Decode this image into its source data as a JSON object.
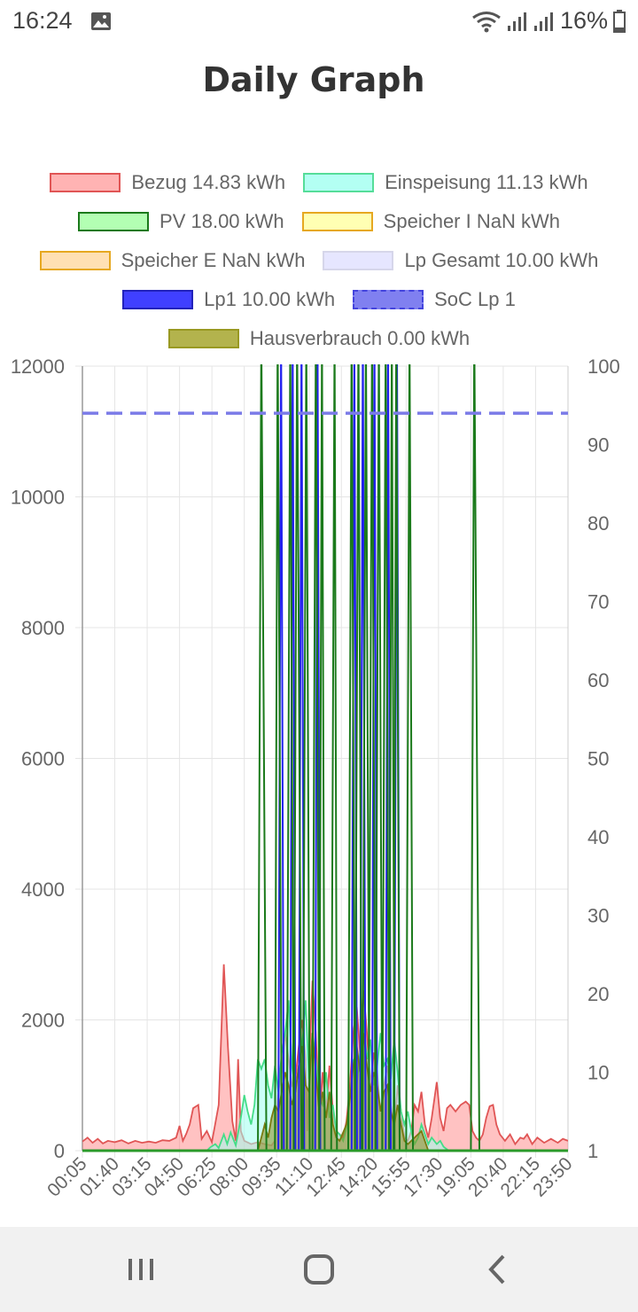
{
  "status_bar": {
    "time": "16:24",
    "battery": "16%"
  },
  "title": "Daily Graph",
  "legend": [
    [
      {
        "label": "Bezug 14.83 kWh",
        "fill": "#ffb3b3",
        "stroke": "#e05555",
        "dashed": false
      },
      {
        "label": "Einspeisung 11.13 kWh",
        "fill": "#b3fff3",
        "stroke": "#55dd99",
        "dashed": false
      }
    ],
    [
      {
        "label": "PV 18.00 kWh",
        "fill": "#b3ffb3",
        "stroke": "#1b7a1b",
        "dashed": false
      },
      {
        "label": "Speicher I NaN kWh",
        "fill": "#ffffb3",
        "stroke": "#e6a820",
        "dashed": false
      }
    ],
    [
      {
        "label": "Speicher E NaN kWh",
        "fill": "#ffe0b3",
        "stroke": "#e6a820",
        "dashed": false
      },
      {
        "label": "Lp Gesamt 10.00 kWh",
        "fill": "#e6e6ff",
        "stroke": "#d6d6ea",
        "dashed": false
      }
    ],
    [
      {
        "label": "Lp1 10.00 kWh",
        "fill": "#4040ff",
        "stroke": "#2222bb",
        "dashed": false
      },
      {
        "label": "SoC Lp 1",
        "fill": "#8080f0",
        "stroke": "#4444dd",
        "dashed": true
      }
    ],
    [
      {
        "label": "Hausverbrauch 0.00 kWh",
        "fill": "#b3b34d",
        "stroke": "#999922",
        "dashed": false
      }
    ]
  ],
  "colors": {
    "bezug_stroke": "#e05555",
    "bezug_fill": "rgba(255,120,120,0.45)",
    "einspeisung_stroke": "#44dd88",
    "einspeisung_fill": "rgba(160,255,240,0.55)",
    "pv_stroke": "#1b7a1b",
    "lp1_stroke": "#2222ee",
    "soc_stroke": "#7b7be8",
    "haus_stroke": "#7a7a10",
    "haus_fill": "rgba(140,140,30,0.55)",
    "grid": "#e5e5e5"
  },
  "chart_data": {
    "type": "line",
    "y_left": {
      "min": 0,
      "max": 12000,
      "ticks": [
        "12000",
        "10000",
        "8000",
        "6000",
        "4000",
        "2000",
        "0"
      ]
    },
    "y_right": {
      "min": 0,
      "max": 100,
      "ticks": [
        "100",
        "90",
        "80",
        "70",
        "60",
        "50",
        "40",
        "30",
        "20",
        "10",
        "1"
      ]
    },
    "x_tick_labels": [
      "00:05",
      "01:40",
      "03:15",
      "04:50",
      "06:25",
      "08:00",
      "09:35",
      "11:10",
      "12:45",
      "14:20",
      "15:55",
      "17:30",
      "19:05",
      "20:40",
      "22:15",
      "23:50"
    ],
    "x_range_minutes": [
      5,
      1430
    ],
    "series": [
      {
        "name": "Bezug",
        "key": "bezug",
        "points": [
          [
            5,
            140
          ],
          [
            20,
            200
          ],
          [
            35,
            120
          ],
          [
            50,
            180
          ],
          [
            65,
            110
          ],
          [
            80,
            150
          ],
          [
            100,
            130
          ],
          [
            120,
            160
          ],
          [
            140,
            110
          ],
          [
            160,
            150
          ],
          [
            180,
            120
          ],
          [
            200,
            140
          ],
          [
            220,
            120
          ],
          [
            240,
            160
          ],
          [
            260,
            150
          ],
          [
            280,
            200
          ],
          [
            290,
            380
          ],
          [
            300,
            150
          ],
          [
            310,
            260
          ],
          [
            320,
            400
          ],
          [
            330,
            650
          ],
          [
            345,
            700
          ],
          [
            355,
            180
          ],
          [
            370,
            300
          ],
          [
            385,
            130
          ],
          [
            405,
            700
          ],
          [
            420,
            2850
          ],
          [
            432,
            1600
          ],
          [
            445,
            450
          ],
          [
            455,
            150
          ],
          [
            462,
            1400
          ],
          [
            470,
            300
          ],
          [
            480,
            150
          ],
          [
            500,
            100
          ],
          [
            520,
            130
          ],
          [
            540,
            100
          ],
          [
            560,
            80
          ],
          [
            570,
            150
          ],
          [
            580,
            900
          ],
          [
            590,
            1200
          ],
          [
            600,
            1800
          ],
          [
            610,
            1400
          ],
          [
            620,
            1000
          ],
          [
            630,
            1100
          ],
          [
            640,
            1600
          ],
          [
            650,
            2000
          ],
          [
            660,
            1400
          ],
          [
            665,
            300
          ],
          [
            670,
            1200
          ],
          [
            680,
            2600
          ],
          [
            690,
            1800
          ],
          [
            700,
            500
          ],
          [
            710,
            1200
          ],
          [
            720,
            600
          ],
          [
            730,
            1300
          ],
          [
            740,
            600
          ],
          [
            750,
            300
          ],
          [
            760,
            250
          ],
          [
            770,
            200
          ],
          [
            780,
            450
          ],
          [
            790,
            1000
          ],
          [
            800,
            1800
          ],
          [
            810,
            2200
          ],
          [
            820,
            1500
          ],
          [
            830,
            2450
          ],
          [
            840,
            1800
          ],
          [
            850,
            1000
          ],
          [
            860,
            1500
          ],
          [
            870,
            1200
          ],
          [
            880,
            600
          ],
          [
            890,
            1000
          ],
          [
            900,
            1300
          ],
          [
            910,
            700
          ],
          [
            920,
            300
          ],
          [
            930,
            1000
          ],
          [
            940,
            600
          ],
          [
            950,
            200
          ],
          [
            960,
            150
          ],
          [
            970,
            300
          ],
          [
            980,
            700
          ],
          [
            990,
            600
          ],
          [
            1000,
            900
          ],
          [
            1010,
            400
          ],
          [
            1020,
            200
          ],
          [
            1030,
            500
          ],
          [
            1045,
            1050
          ],
          [
            1055,
            500
          ],
          [
            1065,
            300
          ],
          [
            1075,
            650
          ],
          [
            1085,
            700
          ],
          [
            1100,
            600
          ],
          [
            1115,
            700
          ],
          [
            1130,
            750
          ],
          [
            1140,
            700
          ],
          [
            1150,
            300
          ],
          [
            1160,
            200
          ],
          [
            1170,
            150
          ],
          [
            1180,
            250
          ],
          [
            1190,
            500
          ],
          [
            1200,
            680
          ],
          [
            1210,
            700
          ],
          [
            1220,
            400
          ],
          [
            1230,
            250
          ],
          [
            1245,
            150
          ],
          [
            1260,
            250
          ],
          [
            1275,
            100
          ],
          [
            1290,
            200
          ],
          [
            1300,
            180
          ],
          [
            1310,
            250
          ],
          [
            1325,
            100
          ],
          [
            1340,
            200
          ],
          [
            1360,
            120
          ],
          [
            1380,
            180
          ],
          [
            1400,
            120
          ],
          [
            1415,
            180
          ],
          [
            1430,
            150
          ]
        ]
      },
      {
        "name": "Einspeisung",
        "key": "einspeisung",
        "points": [
          [
            5,
            0
          ],
          [
            370,
            0
          ],
          [
            380,
            50
          ],
          [
            395,
            100
          ],
          [
            405,
            40
          ],
          [
            420,
            250
          ],
          [
            430,
            100
          ],
          [
            440,
            280
          ],
          [
            455,
            80
          ],
          [
            470,
            500
          ],
          [
            480,
            850
          ],
          [
            490,
            600
          ],
          [
            500,
            400
          ],
          [
            510,
            700
          ],
          [
            520,
            1400
          ],
          [
            530,
            1250
          ],
          [
            540,
            1400
          ],
          [
            550,
            1000
          ],
          [
            560,
            800
          ],
          [
            570,
            1300
          ],
          [
            580,
            900
          ],
          [
            590,
            1500
          ],
          [
            600,
            1800
          ],
          [
            610,
            2300
          ],
          [
            620,
            1300
          ],
          [
            630,
            900
          ],
          [
            640,
            1300
          ],
          [
            650,
            1600
          ],
          [
            660,
            2300
          ],
          [
            670,
            1100
          ],
          [
            680,
            1800
          ],
          [
            690,
            1400
          ],
          [
            700,
            800
          ],
          [
            710,
            700
          ],
          [
            720,
            1200
          ],
          [
            730,
            500
          ],
          [
            740,
            700
          ],
          [
            750,
            300
          ],
          [
            760,
            250
          ],
          [
            770,
            150
          ],
          [
            780,
            350
          ],
          [
            790,
            800
          ],
          [
            800,
            1400
          ],
          [
            810,
            1000
          ],
          [
            820,
            1500
          ],
          [
            830,
            2000
          ],
          [
            840,
            1400
          ],
          [
            850,
            1700
          ],
          [
            860,
            1000
          ],
          [
            870,
            1300
          ],
          [
            880,
            1800
          ],
          [
            890,
            1300
          ],
          [
            900,
            1400
          ],
          [
            910,
            1100
          ],
          [
            920,
            1700
          ],
          [
            930,
            1200
          ],
          [
            940,
            600
          ],
          [
            950,
            400
          ],
          [
            960,
            600
          ],
          [
            970,
            300
          ],
          [
            980,
            100
          ],
          [
            990,
            200
          ],
          [
            1000,
            400
          ],
          [
            1010,
            250
          ],
          [
            1020,
            100
          ],
          [
            1030,
            200
          ],
          [
            1045,
            100
          ],
          [
            1055,
            150
          ],
          [
            1065,
            60
          ],
          [
            1080,
            0
          ],
          [
            1430,
            0
          ]
        ]
      },
      {
        "name": "Hausverbrauch",
        "key": "haus",
        "points": [
          [
            5,
            0
          ],
          [
            520,
            0
          ],
          [
            530,
            200
          ],
          [
            540,
            400
          ],
          [
            550,
            200
          ],
          [
            560,
            500
          ],
          [
            570,
            700
          ],
          [
            580,
            600
          ],
          [
            590,
            900
          ],
          [
            600,
            1200
          ],
          [
            610,
            1000
          ],
          [
            620,
            700
          ],
          [
            630,
            900
          ],
          [
            640,
            1300
          ],
          [
            650,
            1600
          ],
          [
            660,
            1000
          ],
          [
            670,
            900
          ],
          [
            680,
            1800
          ],
          [
            690,
            1200
          ],
          [
            700,
            600
          ],
          [
            710,
            900
          ],
          [
            720,
            500
          ],
          [
            730,
            900
          ],
          [
            740,
            400
          ],
          [
            750,
            200
          ],
          [
            760,
            150
          ],
          [
            780,
            400
          ],
          [
            790,
            800
          ],
          [
            800,
            1300
          ],
          [
            810,
            1600
          ],
          [
            820,
            1200
          ],
          [
            830,
            1800
          ],
          [
            840,
            1300
          ],
          [
            850,
            900
          ],
          [
            860,
            1200
          ],
          [
            870,
            1000
          ],
          [
            880,
            600
          ],
          [
            890,
            900
          ],
          [
            900,
            1000
          ],
          [
            910,
            600
          ],
          [
            920,
            400
          ],
          [
            930,
            700
          ],
          [
            940,
            400
          ],
          [
            950,
            150
          ],
          [
            960,
            100
          ],
          [
            980,
            200
          ],
          [
            1000,
            300
          ],
          [
            1020,
            0
          ],
          [
            1430,
            0
          ]
        ]
      }
    ],
    "pv_spikes": [
      {
        "start": 520,
        "peak": 530,
        "end": 545
      },
      {
        "start": 570,
        "peak": 578,
        "end": 590
      },
      {
        "start": 605,
        "peak": 615,
        "end": 625
      },
      {
        "start": 625,
        "peak": 635,
        "end": 648
      },
      {
        "start": 652,
        "peak": 662,
        "end": 672
      },
      {
        "start": 680,
        "peak": 690,
        "end": 700
      },
      {
        "start": 700,
        "peak": 708,
        "end": 716
      },
      {
        "start": 735,
        "peak": 745,
        "end": 752
      },
      {
        "start": 785,
        "peak": 795,
        "end": 805
      },
      {
        "start": 805,
        "peak": 815,
        "end": 825
      },
      {
        "start": 827,
        "peak": 837,
        "end": 847
      },
      {
        "start": 845,
        "peak": 855,
        "end": 865
      },
      {
        "start": 865,
        "peak": 875,
        "end": 885
      },
      {
        "start": 885,
        "peak": 895,
        "end": 905
      },
      {
        "start": 905,
        "peak": 913,
        "end": 921
      },
      {
        "start": 918,
        "peak": 926,
        "end": 936
      },
      {
        "start": 955,
        "peak": 965,
        "end": 975
      },
      {
        "start": 1145,
        "peak": 1155,
        "end": 1170
      }
    ],
    "lp1_spikes": [
      {
        "start": 580,
        "peak": 588,
        "end": 596
      },
      {
        "start": 615,
        "peak": 622,
        "end": 630
      },
      {
        "start": 640,
        "peak": 648,
        "end": 656
      },
      {
        "start": 688,
        "peak": 695,
        "end": 703
      },
      {
        "start": 795,
        "peak": 803,
        "end": 811
      },
      {
        "start": 820,
        "peak": 828,
        "end": 836
      },
      {
        "start": 855,
        "peak": 862,
        "end": 870
      },
      {
        "start": 895,
        "peak": 902,
        "end": 910
      },
      {
        "start": 920,
        "peak": 928,
        "end": 936
      }
    ],
    "soc_lp1": 94
  }
}
